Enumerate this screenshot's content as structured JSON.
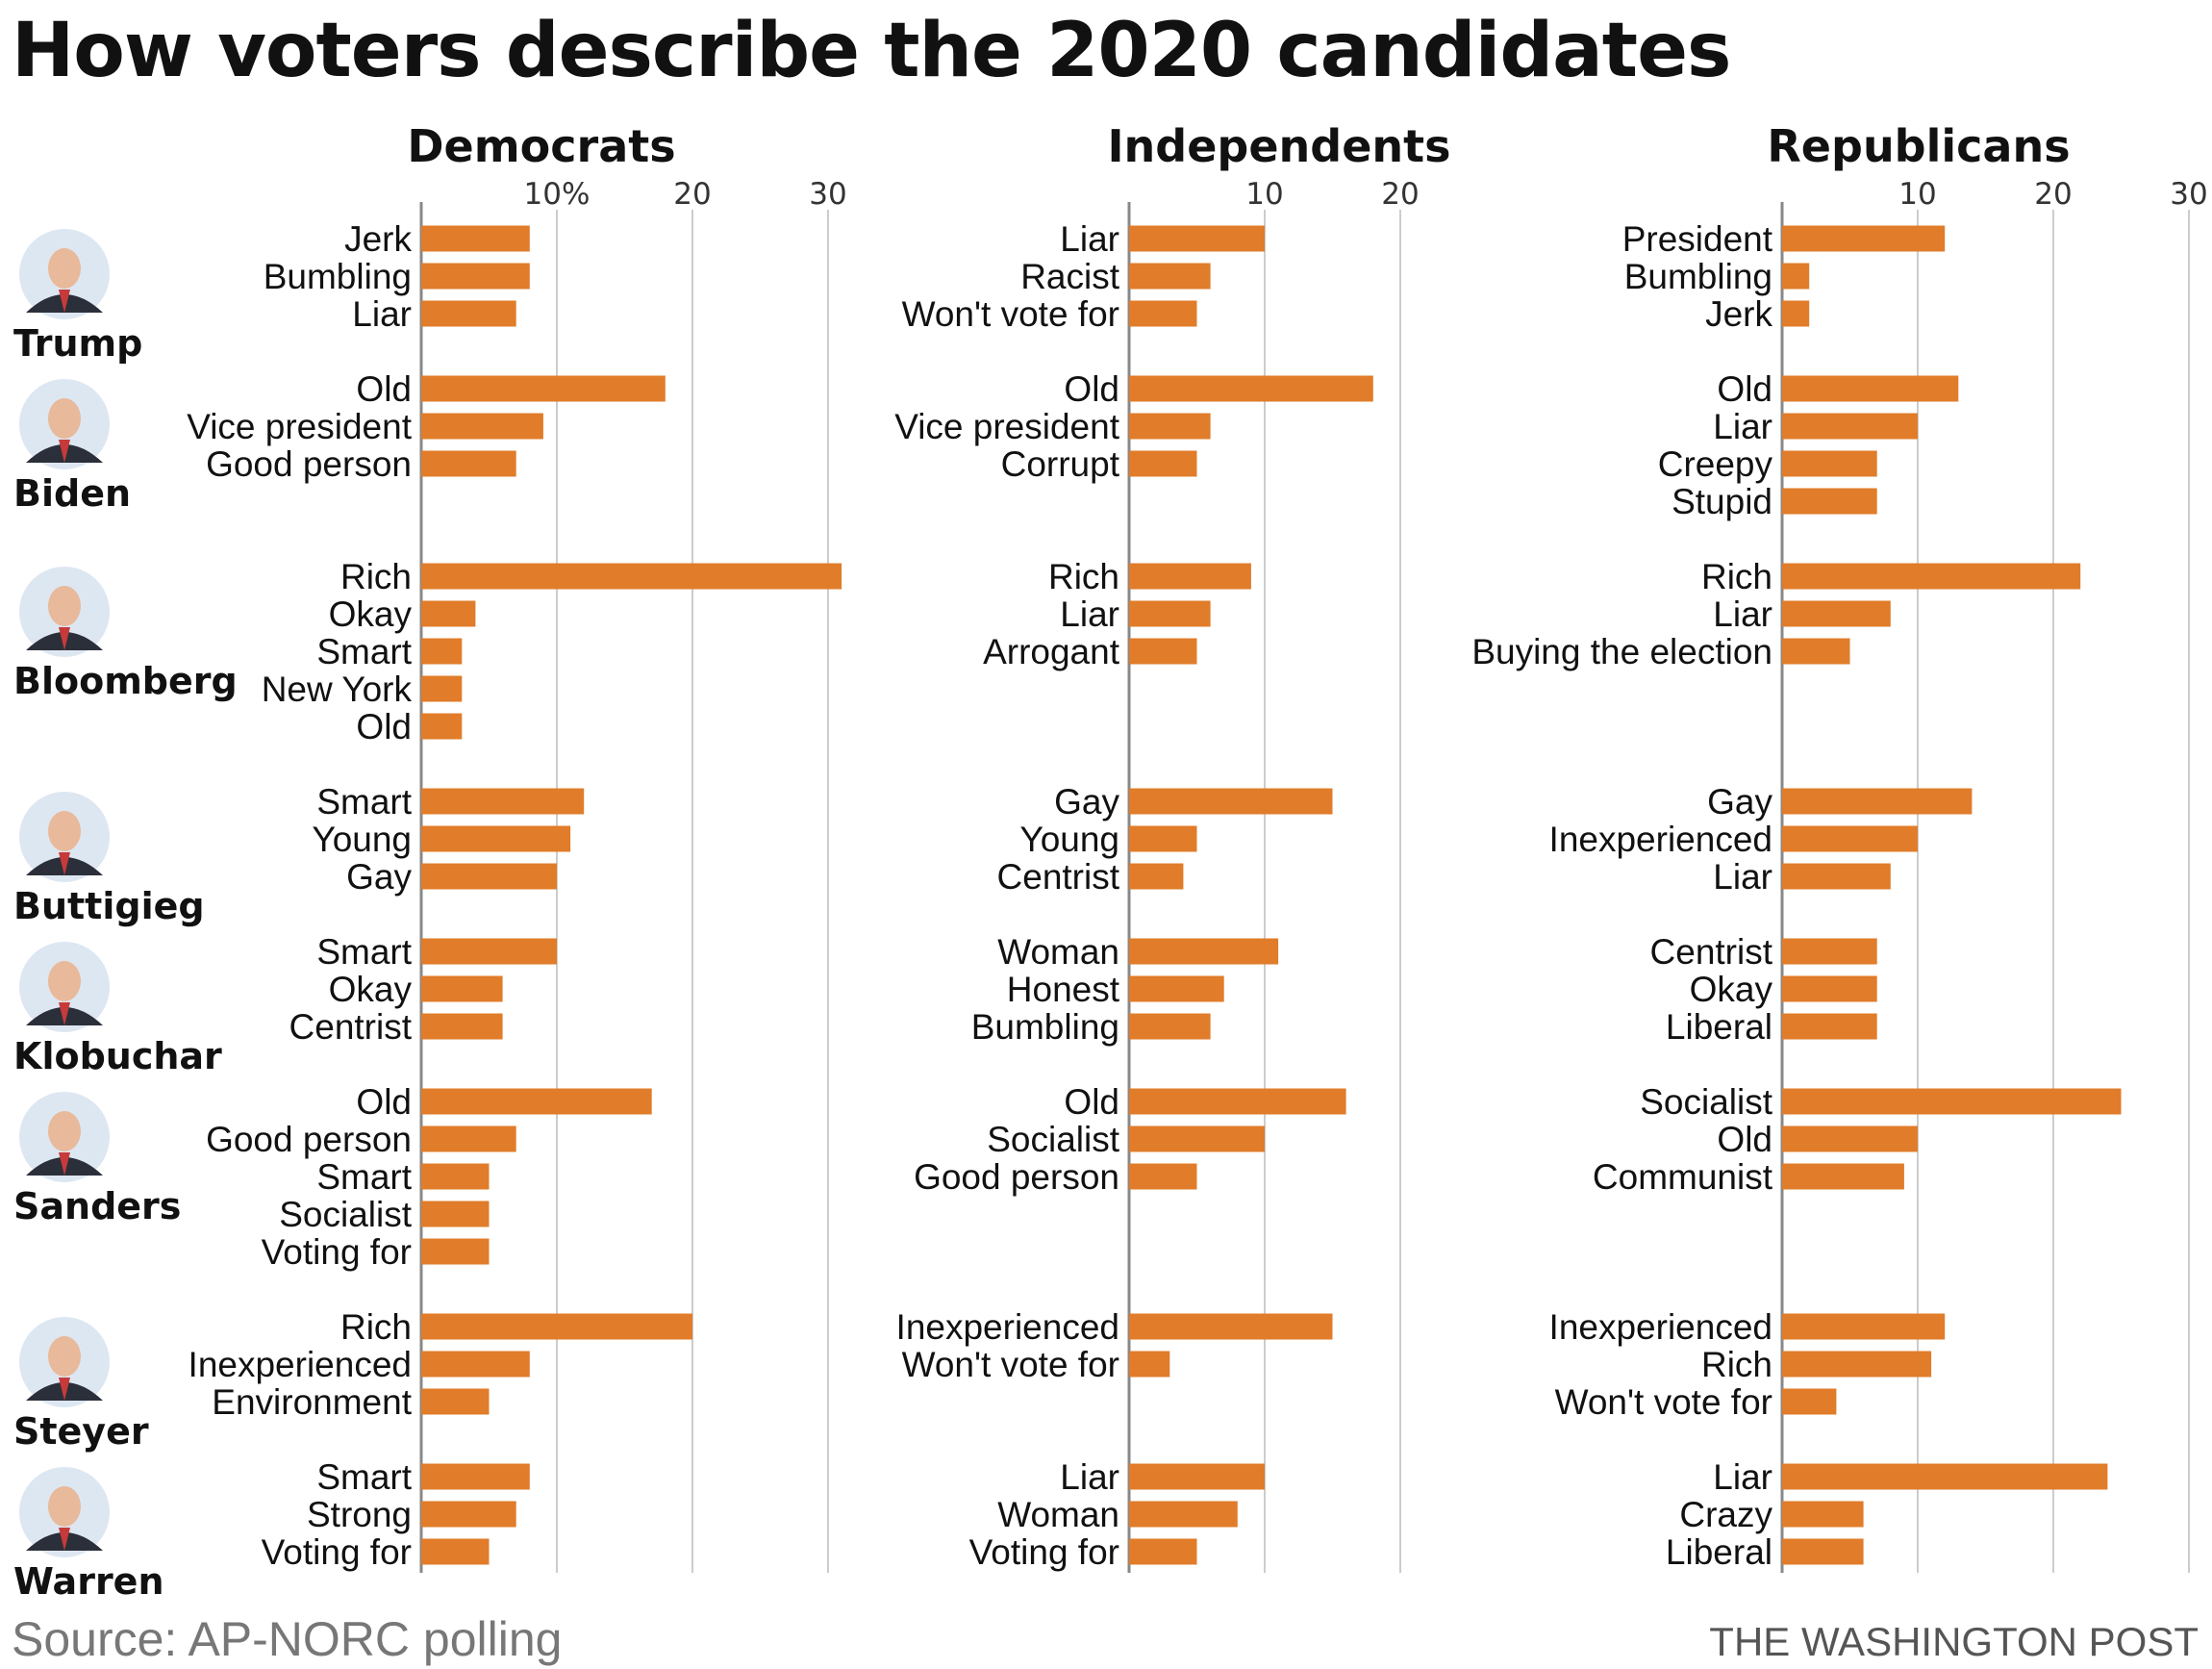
{
  "page": {
    "title": "How voters describe the 2020 candidates",
    "source": "Source: AP-NORC polling",
    "credit": "THE WASHINGTON POST"
  },
  "colors": {
    "bar": "#e07c2a",
    "grid": "#cccccc",
    "axis": "#888888",
    "text": "#111111",
    "avatar_bg": "#dde7f2"
  },
  "icons": {
    "candidate_avatar": "portrait-icon"
  },
  "chart_data": {
    "type": "bar",
    "orientation": "horizontal",
    "candidates": [
      "Trump",
      "Biden",
      "Bloomberg",
      "Buttigieg",
      "Klobuchar",
      "Sanders",
      "Steyer",
      "Warren"
    ],
    "panels": [
      {
        "name": "Democrats",
        "xlim": [
          0,
          31
        ],
        "ticks": [
          {
            "v": 10,
            "label": "10%"
          },
          {
            "v": 20,
            "label": "20"
          },
          {
            "v": 30,
            "label": "30"
          }
        ],
        "groups": [
          {
            "candidate": "Trump",
            "items": [
              {
                "label": "Jerk",
                "value": 8
              },
              {
                "label": "Bumbling",
                "value": 8
              },
              {
                "label": "Liar",
                "value": 7
              }
            ]
          },
          {
            "candidate": "Biden",
            "items": [
              {
                "label": "Old",
                "value": 18
              },
              {
                "label": "Vice president",
                "value": 9
              },
              {
                "label": "Good person",
                "value": 7
              }
            ]
          },
          {
            "candidate": "Bloomberg",
            "items": [
              {
                "label": "Rich",
                "value": 31
              },
              {
                "label": "Okay",
                "value": 4
              },
              {
                "label": "Smart",
                "value": 3
              },
              {
                "label": "New York",
                "value": 3
              },
              {
                "label": "Old",
                "value": 3
              }
            ]
          },
          {
            "candidate": "Buttigieg",
            "items": [
              {
                "label": "Smart",
                "value": 12
              },
              {
                "label": "Young",
                "value": 11
              },
              {
                "label": "Gay",
                "value": 10
              }
            ]
          },
          {
            "candidate": "Klobuchar",
            "items": [
              {
                "label": "Smart",
                "value": 10
              },
              {
                "label": "Okay",
                "value": 6
              },
              {
                "label": "Centrist",
                "value": 6
              }
            ]
          },
          {
            "candidate": "Sanders",
            "items": [
              {
                "label": "Old",
                "value": 17
              },
              {
                "label": "Good person",
                "value": 7
              },
              {
                "label": "Smart",
                "value": 5
              },
              {
                "label": "Socialist",
                "value": 5
              },
              {
                "label": "Voting for",
                "value": 5
              }
            ]
          },
          {
            "candidate": "Steyer",
            "items": [
              {
                "label": "Rich",
                "value": 20
              },
              {
                "label": "Inexperienced",
                "value": 8
              },
              {
                "label": "Environment",
                "value": 5
              }
            ]
          },
          {
            "candidate": "Warren",
            "items": [
              {
                "label": "Smart",
                "value": 8
              },
              {
                "label": "Strong",
                "value": 7
              },
              {
                "label": "Voting for",
                "value": 5
              }
            ]
          }
        ]
      },
      {
        "name": "Independents",
        "xlim": [
          0,
          21
        ],
        "ticks": [
          {
            "v": 10,
            "label": "10"
          },
          {
            "v": 20,
            "label": "20"
          }
        ],
        "groups": [
          {
            "candidate": "Trump",
            "items": [
              {
                "label": "Liar",
                "value": 10
              },
              {
                "label": "Racist",
                "value": 6
              },
              {
                "label": "Won't vote for",
                "value": 5
              }
            ]
          },
          {
            "candidate": "Biden",
            "items": [
              {
                "label": "Old",
                "value": 18
              },
              {
                "label": "Vice president",
                "value": 6
              },
              {
                "label": "Corrupt",
                "value": 5
              }
            ]
          },
          {
            "candidate": "Bloomberg",
            "items": [
              {
                "label": "Rich",
                "value": 9
              },
              {
                "label": "Liar",
                "value": 6
              },
              {
                "label": "Arrogant",
                "value": 5
              }
            ]
          },
          {
            "candidate": "Buttigieg",
            "items": [
              {
                "label": "Gay",
                "value": 15
              },
              {
                "label": "Young",
                "value": 5
              },
              {
                "label": "Centrist",
                "value": 4
              }
            ]
          },
          {
            "candidate": "Klobuchar",
            "items": [
              {
                "label": "Woman",
                "value": 11
              },
              {
                "label": "Honest",
                "value": 7
              },
              {
                "label": "Bumbling",
                "value": 6
              }
            ]
          },
          {
            "candidate": "Sanders",
            "items": [
              {
                "label": "Old",
                "value": 16
              },
              {
                "label": "Socialist",
                "value": 10
              },
              {
                "label": "Good person",
                "value": 5
              }
            ]
          },
          {
            "candidate": "Steyer",
            "items": [
              {
                "label": "Inexperienced",
                "value": 15
              },
              {
                "label": "Won't vote for",
                "value": 3
              }
            ]
          },
          {
            "candidate": "Warren",
            "items": [
              {
                "label": "Liar",
                "value": 10
              },
              {
                "label": "Woman",
                "value": 8
              },
              {
                "label": "Voting for",
                "value": 5
              }
            ]
          }
        ]
      },
      {
        "name": "Republicans",
        "xlim": [
          0,
          30
        ],
        "ticks": [
          {
            "v": 10,
            "label": "10"
          },
          {
            "v": 20,
            "label": "20"
          },
          {
            "v": 30,
            "label": "30"
          }
        ],
        "groups": [
          {
            "candidate": "Trump",
            "items": [
              {
                "label": "President",
                "value": 12
              },
              {
                "label": "Bumbling",
                "value": 2
              },
              {
                "label": "Jerk",
                "value": 2
              }
            ]
          },
          {
            "candidate": "Biden",
            "items": [
              {
                "label": "Old",
                "value": 13
              },
              {
                "label": "Liar",
                "value": 10
              },
              {
                "label": "Creepy",
                "value": 7
              },
              {
                "label": "Stupid",
                "value": 7
              }
            ]
          },
          {
            "candidate": "Bloomberg",
            "items": [
              {
                "label": "Rich",
                "value": 22
              },
              {
                "label": "Liar",
                "value": 8
              },
              {
                "label": "Buying the election",
                "value": 5
              }
            ]
          },
          {
            "candidate": "Buttigieg",
            "items": [
              {
                "label": "Gay",
                "value": 14
              },
              {
                "label": "Inexperienced",
                "value": 10
              },
              {
                "label": "Liar",
                "value": 8
              }
            ]
          },
          {
            "candidate": "Klobuchar",
            "items": [
              {
                "label": "Centrist",
                "value": 7
              },
              {
                "label": "Okay",
                "value": 7
              },
              {
                "label": "Liberal",
                "value": 7
              }
            ]
          },
          {
            "candidate": "Sanders",
            "items": [
              {
                "label": "Socialist",
                "value": 25
              },
              {
                "label": "Old",
                "value": 10
              },
              {
                "label": "Communist",
                "value": 9
              }
            ]
          },
          {
            "candidate": "Steyer",
            "items": [
              {
                "label": "Inexperienced",
                "value": 12
              },
              {
                "label": "Rich",
                "value": 11
              },
              {
                "label": "Won't vote for",
                "value": 4
              }
            ]
          },
          {
            "candidate": "Warren",
            "items": [
              {
                "label": "Liar",
                "value": 24
              },
              {
                "label": "Crazy",
                "value": 6
              },
              {
                "label": "Liberal",
                "value": 6
              }
            ]
          }
        ]
      }
    ]
  }
}
